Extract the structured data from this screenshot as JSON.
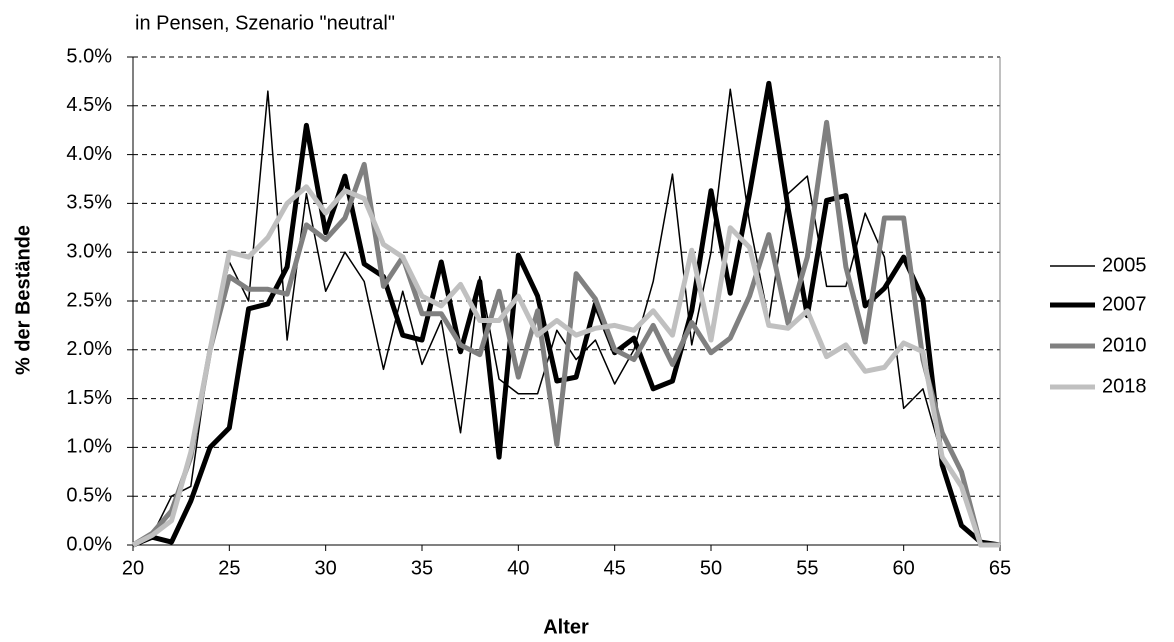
{
  "chart_data": {
    "type": "line",
    "subtitle": "in Pensen, Szenario \"neutral\"",
    "y_label": "% der Bestände",
    "x_label": "Alter",
    "x": [
      20,
      21,
      22,
      23,
      24,
      25,
      26,
      27,
      28,
      29,
      30,
      31,
      32,
      33,
      34,
      35,
      36,
      37,
      38,
      39,
      40,
      41,
      42,
      43,
      44,
      45,
      46,
      47,
      48,
      49,
      50,
      51,
      52,
      53,
      54,
      55,
      56,
      57,
      58,
      59,
      60,
      61,
      62,
      63,
      64,
      65
    ],
    "series": [
      {
        "name": "2005",
        "color": "#000000",
        "values": [
          0,
          0.1,
          0.5,
          0.6,
          2.0,
          2.9,
          2.5,
          4.65,
          2.1,
          3.6,
          2.6,
          3.0,
          2.7,
          1.8,
          2.6,
          1.85,
          2.3,
          1.15,
          2.75,
          1.7,
          1.55,
          1.55,
          2.2,
          1.9,
          2.1,
          1.65,
          2.0,
          2.7,
          3.8,
          2.05,
          3.0,
          4.67,
          3.3,
          2.3,
          3.6,
          3.78,
          2.65,
          2.65,
          3.4,
          2.95,
          1.4,
          1.6,
          0.9,
          0.6,
          0,
          0
        ]
      },
      {
        "name": "2007",
        "color": "#000000",
        "values": [
          0,
          0.08,
          0.03,
          0.45,
          1.0,
          1.2,
          2.42,
          2.47,
          2.85,
          4.3,
          3.2,
          3.78,
          2.88,
          2.75,
          2.15,
          2.1,
          2.9,
          1.98,
          2.7,
          0.9,
          2.97,
          2.55,
          1.68,
          1.72,
          2.47,
          1.97,
          2.12,
          1.6,
          1.68,
          2.4,
          3.63,
          2.58,
          3.6,
          4.73,
          3.45,
          2.35,
          3.53,
          3.58,
          2.45,
          2.63,
          2.95,
          2.52,
          0.82,
          0.2,
          0.03,
          0
        ]
      },
      {
        "name": "2010",
        "color": "#808080",
        "values": [
          0,
          0.12,
          0.35,
          0.9,
          2.0,
          2.75,
          2.62,
          2.62,
          2.57,
          3.28,
          3.13,
          3.35,
          3.9,
          2.65,
          2.95,
          2.37,
          2.37,
          2.05,
          1.95,
          2.6,
          1.72,
          2.4,
          1.03,
          2.78,
          2.52,
          2.0,
          1.9,
          2.25,
          1.85,
          2.28,
          1.97,
          2.12,
          2.55,
          3.18,
          2.27,
          2.95,
          4.33,
          2.85,
          2.08,
          3.35,
          3.35,
          1.9,
          1.15,
          0.75,
          0,
          0
        ]
      },
      {
        "name": "2018",
        "color": "#c0c0c0",
        "values": [
          0,
          0.1,
          0.25,
          0.95,
          2.0,
          3.0,
          2.95,
          3.15,
          3.5,
          3.67,
          3.4,
          3.63,
          3.55,
          3.08,
          2.95,
          2.55,
          2.45,
          2.67,
          2.3,
          2.3,
          2.55,
          2.15,
          2.3,
          2.15,
          2.22,
          2.25,
          2.2,
          2.4,
          2.15,
          3.02,
          2.1,
          3.25,
          3.05,
          2.25,
          2.22,
          2.4,
          1.93,
          2.05,
          1.78,
          1.82,
          2.07,
          1.98,
          0.9,
          0.6,
          0,
          0
        ]
      }
    ],
    "xlim": [
      20,
      65
    ],
    "xticks": [
      20,
      25,
      30,
      35,
      40,
      45,
      50,
      55,
      60,
      65
    ],
    "ylim": [
      0,
      5
    ],
    "yticks": [
      {
        "value": 0,
        "label": "0.0%"
      },
      {
        "value": 0.5,
        "label": "0.5%"
      },
      {
        "value": 1,
        "label": "1.0%"
      },
      {
        "value": 1.5,
        "label": "1.5%"
      },
      {
        "value": 2,
        "label": "2.0%"
      },
      {
        "value": 2.5,
        "label": "2.5%"
      },
      {
        "value": 3,
        "label": "3.0%"
      },
      {
        "value": 3.5,
        "label": "3.5%"
      },
      {
        "value": 4,
        "label": "4.0%"
      },
      {
        "value": 4.5,
        "label": "4.5%"
      },
      {
        "value": 5,
        "label": "5.0%"
      }
    ],
    "grid": true,
    "legend": "right"
  }
}
